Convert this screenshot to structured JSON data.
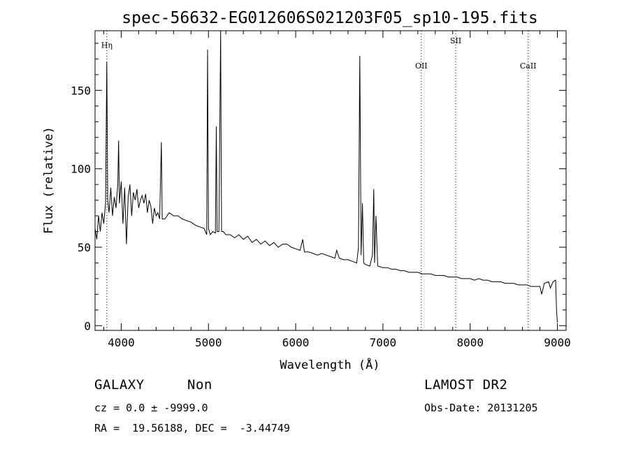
{
  "chart_data": {
    "type": "line",
    "title": "spec-56632-EG012606S021203F05_sp10-195.fits",
    "xlabel": "Wavelength (Å)",
    "ylabel": "Flux (relative)",
    "xlim": [
      3700,
      9100
    ],
    "ylim": [
      -3,
      188
    ],
    "xticks": [
      4000,
      5000,
      6000,
      7000,
      8000,
      9000
    ],
    "yticks": [
      0,
      50,
      100,
      150
    ],
    "line_color": "#000000",
    "series": [
      {
        "values": [
          [
            3700,
            62
          ],
          [
            3720,
            55
          ],
          [
            3740,
            70
          ],
          [
            3760,
            60
          ],
          [
            3780,
            72
          ],
          [
            3800,
            65
          ],
          [
            3820,
            78
          ],
          [
            3835,
            168
          ],
          [
            3845,
            80
          ],
          [
            3860,
            72
          ],
          [
            3880,
            88
          ],
          [
            3900,
            70
          ],
          [
            3920,
            82
          ],
          [
            3940,
            75
          ],
          [
            3960,
            90
          ],
          [
            3970,
            118
          ],
          [
            3980,
            78
          ],
          [
            4000,
            92
          ],
          [
            4020,
            65
          ],
          [
            4040,
            88
          ],
          [
            4060,
            52
          ],
          [
            4080,
            82
          ],
          [
            4100,
            90
          ],
          [
            4120,
            70
          ],
          [
            4140,
            85
          ],
          [
            4160,
            80
          ],
          [
            4180,
            87
          ],
          [
            4200,
            75
          ],
          [
            4220,
            80
          ],
          [
            4240,
            83
          ],
          [
            4260,
            78
          ],
          [
            4280,
            84
          ],
          [
            4300,
            72
          ],
          [
            4320,
            80
          ],
          [
            4340,
            76
          ],
          [
            4360,
            65
          ],
          [
            4380,
            75
          ],
          [
            4400,
            70
          ],
          [
            4420,
            72
          ],
          [
            4440,
            68
          ],
          [
            4460,
            117
          ],
          [
            4470,
            68
          ],
          [
            4500,
            68
          ],
          [
            4550,
            72
          ],
          [
            4600,
            70
          ],
          [
            4650,
            70
          ],
          [
            4700,
            68
          ],
          [
            4750,
            67
          ],
          [
            4800,
            66
          ],
          [
            4850,
            64
          ],
          [
            4900,
            63
          ],
          [
            4950,
            62
          ],
          [
            4980,
            58
          ],
          [
            4990,
            176
          ],
          [
            5000,
            62
          ],
          [
            5020,
            58
          ],
          [
            5050,
            60
          ],
          [
            5080,
            59
          ],
          [
            5090,
            127
          ],
          [
            5100,
            60
          ],
          [
            5120,
            60
          ],
          [
            5140,
            188
          ],
          [
            5150,
            60
          ],
          [
            5170,
            60
          ],
          [
            5200,
            58
          ],
          [
            5250,
            58
          ],
          [
            5300,
            56
          ],
          [
            5350,
            58
          ],
          [
            5400,
            55
          ],
          [
            5450,
            57
          ],
          [
            5500,
            53
          ],
          [
            5550,
            55
          ],
          [
            5600,
            52
          ],
          [
            5650,
            54
          ],
          [
            5700,
            51
          ],
          [
            5750,
            53
          ],
          [
            5800,
            50
          ],
          [
            5850,
            52
          ],
          [
            5900,
            52
          ],
          [
            5950,
            50
          ],
          [
            6000,
            49
          ],
          [
            6050,
            48
          ],
          [
            6080,
            55
          ],
          [
            6100,
            47
          ],
          [
            6150,
            47
          ],
          [
            6200,
            46
          ],
          [
            6250,
            45
          ],
          [
            6300,
            46
          ],
          [
            6350,
            45
          ],
          [
            6400,
            44
          ],
          [
            6450,
            43
          ],
          [
            6470,
            48
          ],
          [
            6500,
            43
          ],
          [
            6550,
            42
          ],
          [
            6600,
            42
          ],
          [
            6650,
            41
          ],
          [
            6700,
            40
          ],
          [
            6720,
            50
          ],
          [
            6735,
            172
          ],
          [
            6750,
            45
          ],
          [
            6765,
            78
          ],
          [
            6780,
            40
          ],
          [
            6800,
            39
          ],
          [
            6850,
            38
          ],
          [
            6880,
            45
          ],
          [
            6895,
            87
          ],
          [
            6905,
            40
          ],
          [
            6920,
            70
          ],
          [
            6940,
            38
          ],
          [
            7000,
            37
          ],
          [
            7050,
            37
          ],
          [
            7100,
            36
          ],
          [
            7150,
            36
          ],
          [
            7200,
            35
          ],
          [
            7250,
            35
          ],
          [
            7300,
            34
          ],
          [
            7350,
            34
          ],
          [
            7400,
            34
          ],
          [
            7450,
            33
          ],
          [
            7500,
            33
          ],
          [
            7550,
            33
          ],
          [
            7600,
            32
          ],
          [
            7650,
            32
          ],
          [
            7700,
            32
          ],
          [
            7750,
            31
          ],
          [
            7800,
            31
          ],
          [
            7850,
            31
          ],
          [
            7900,
            30
          ],
          [
            7950,
            30
          ],
          [
            8000,
            30
          ],
          [
            8050,
            29
          ],
          [
            8100,
            30
          ],
          [
            8150,
            29
          ],
          [
            8200,
            29
          ],
          [
            8250,
            28
          ],
          [
            8300,
            28
          ],
          [
            8350,
            28
          ],
          [
            8400,
            27
          ],
          [
            8450,
            27
          ],
          [
            8500,
            27
          ],
          [
            8550,
            26
          ],
          [
            8600,
            26
          ],
          [
            8650,
            26
          ],
          [
            8700,
            25
          ],
          [
            8750,
            25
          ],
          [
            8800,
            25
          ],
          [
            8820,
            20
          ],
          [
            8850,
            27
          ],
          [
            8900,
            28
          ],
          [
            8920,
            24
          ],
          [
            8950,
            28
          ],
          [
            8980,
            29
          ],
          [
            8990,
            10
          ],
          [
            9000,
            2
          ]
        ]
      }
    ],
    "lines": [
      {
        "label": "Hη",
        "x": 3835,
        "label_y": 177
      },
      {
        "label": "OII",
        "x": 7440,
        "label_y": 164
      },
      {
        "label": "SII",
        "x": 7835,
        "label_y": 180
      },
      {
        "label": "CaII",
        "x": 8665,
        "label_y": 164
      }
    ],
    "legend": "none",
    "grid": false
  },
  "info": {
    "class": "GALAXY",
    "subclass": "Non",
    "survey": "LAMOST DR2",
    "cz": "cz = 0.0 ± -9999.0",
    "obs_date": "Obs-Date: 20131205",
    "coords": "RA =  19.56188, DEC =  -3.44749"
  }
}
